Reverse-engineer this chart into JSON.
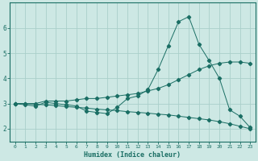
{
  "xlabel": "Humidex (Indice chaleur)",
  "bg_color": "#cde8e4",
  "grid_color": "#aacfca",
  "line_color": "#1a6e64",
  "x": [
    0,
    1,
    2,
    3,
    4,
    5,
    6,
    7,
    8,
    9,
    10,
    11,
    12,
    13,
    14,
    15,
    16,
    17,
    18,
    19,
    20,
    21,
    22,
    23
  ],
  "line_upper": [
    3.0,
    3.0,
    3.0,
    3.1,
    3.1,
    3.1,
    3.15,
    3.2,
    3.2,
    3.25,
    3.3,
    3.35,
    3.4,
    3.5,
    3.6,
    3.75,
    3.95,
    4.15,
    4.35,
    4.5,
    4.6,
    4.65,
    4.65,
    4.6
  ],
  "line_mid": [
    3.0,
    2.95,
    2.9,
    3.05,
    3.0,
    2.95,
    2.9,
    2.7,
    2.65,
    2.6,
    2.85,
    3.2,
    3.3,
    3.55,
    4.35,
    5.3,
    6.25,
    6.45,
    5.35,
    4.7,
    4.0,
    2.75,
    2.5,
    2.05
  ],
  "line_lower": [
    3.0,
    3.0,
    2.97,
    2.95,
    2.92,
    2.88,
    2.85,
    2.82,
    2.78,
    2.75,
    2.72,
    2.68,
    2.65,
    2.62,
    2.58,
    2.55,
    2.5,
    2.45,
    2.4,
    2.35,
    2.28,
    2.2,
    2.1,
    2.0
  ],
  "ylim": [
    1.5,
    7.0
  ],
  "yticks": [
    2,
    3,
    4,
    5,
    6
  ],
  "xlim": [
    -0.5,
    23.5
  ]
}
